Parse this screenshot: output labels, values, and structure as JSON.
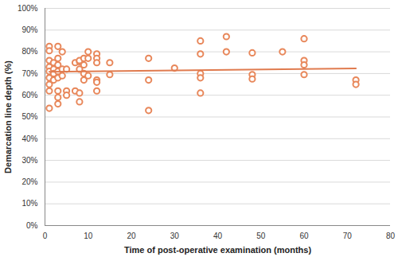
{
  "chart_data": {
    "type": "scatter",
    "x_label": "Time of post-operative examination (months)",
    "y_label": "Demarcation line depth (%)",
    "xlim": [
      0,
      80
    ],
    "xticks": [
      0,
      10,
      20,
      30,
      40,
      50,
      60,
      70,
      80
    ],
    "ylim": [
      0,
      100
    ],
    "yticks": [
      {
        "value": 0,
        "label": "0%"
      },
      {
        "value": 10,
        "label": "10%"
      },
      {
        "value": 20,
        "label": "20%"
      },
      {
        "value": 30,
        "label": "30%"
      },
      {
        "value": 40,
        "label": "40%"
      },
      {
        "value": 50,
        "label": "50%"
      },
      {
        "value": 60,
        "label": "60%"
      },
      {
        "value": 70,
        "label": "70%"
      },
      {
        "value": 80,
        "label": "80%"
      },
      {
        "value": 90,
        "label": "90%"
      },
      {
        "value": 100,
        "label": "100%"
      }
    ],
    "grid": true,
    "series": [
      {
        "type": "scatter",
        "color": "#e8875a",
        "marker": "circle_open",
        "x": [
          1,
          1,
          1,
          1,
          1,
          1,
          1,
          1,
          1,
          2,
          2,
          2,
          2,
          3,
          3,
          3,
          3,
          3,
          3,
          3,
          3,
          4,
          4,
          4,
          5,
          5,
          5,
          7,
          7,
          8,
          8,
          8,
          8,
          8,
          9,
          9,
          9,
          9,
          10,
          10,
          10,
          12,
          12,
          12,
          12,
          12,
          12,
          15,
          15,
          24,
          24,
          24,
          30,
          36,
          36,
          36,
          36,
          36,
          42,
          42,
          48,
          48,
          48,
          55,
          60,
          60,
          60,
          60,
          72,
          72
        ],
        "values": [
          82.5,
          80.5,
          76,
          73,
          71,
          68,
          65,
          62,
          54,
          75,
          72,
          70,
          67,
          82.5,
          77,
          74,
          71,
          68,
          62,
          59,
          56,
          80,
          72,
          69,
          72,
          62,
          60,
          75,
          62,
          75.5,
          76,
          72,
          61,
          57,
          77,
          74,
          70,
          67,
          80,
          77,
          69,
          79,
          77,
          75,
          67,
          66,
          62,
          75,
          69.5,
          77,
          67,
          53,
          72.5,
          85,
          79,
          70,
          68,
          61,
          87,
          80,
          79.5,
          69.5,
          67.5,
          80,
          86,
          76,
          74,
          69.5,
          67,
          65
        ]
      },
      {
        "type": "line",
        "color": "#e07b4f",
        "line_style": "solid",
        "x": [
          1,
          72
        ],
        "values": [
          70.8,
          72.3
        ]
      }
    ]
  }
}
